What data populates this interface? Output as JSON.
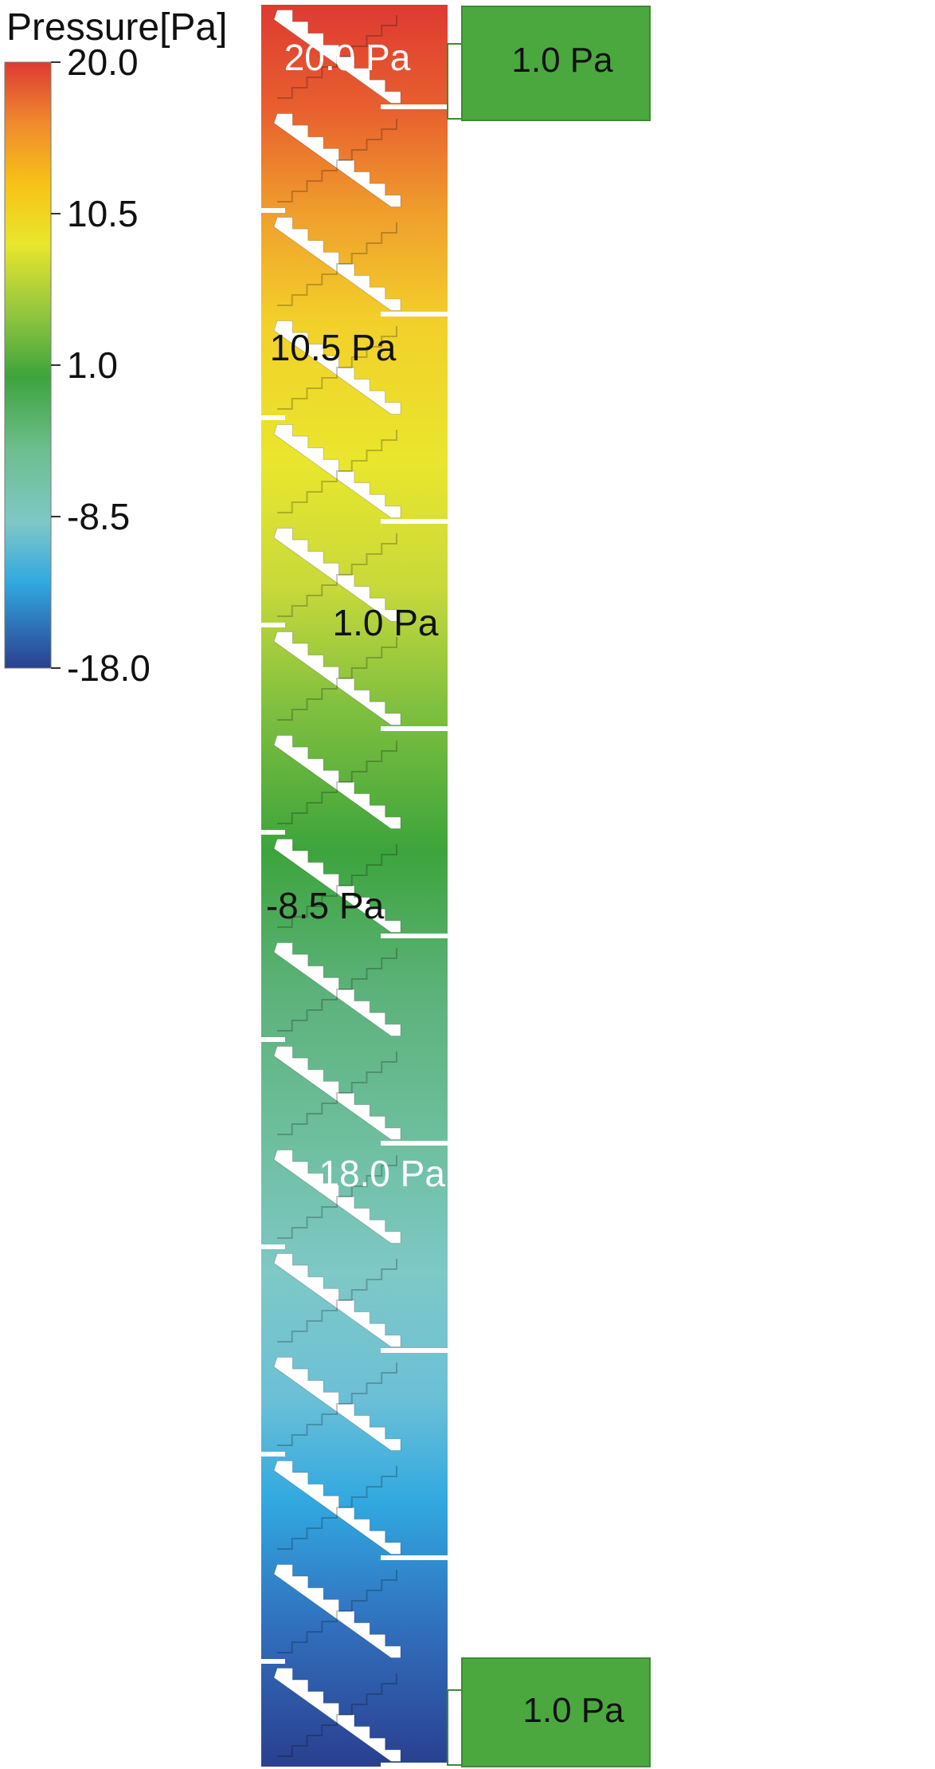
{
  "legend": {
    "title": "Pressure[Pa]",
    "ticks": [
      {
        "value": 20.0,
        "label": "20.0"
      },
      {
        "value": 10.5,
        "label": "10.5"
      },
      {
        "value": 1.0,
        "label": "1.0"
      },
      {
        "value": -8.5,
        "label": "-8.5"
      },
      {
        "value": -18.0,
        "label": "-18.0"
      }
    ],
    "range": [
      -18.0,
      20.0
    ],
    "colormap": [
      "#2a3f8f",
      "#31a8e0",
      "#7ec8c6",
      "#6dbe8f",
      "#3da43c",
      "#8fc43f",
      "#e9e62d",
      "#f7c217",
      "#ef8a2e",
      "#de3a32"
    ]
  },
  "column": {
    "stages": 17,
    "inlet_pressure": 20.0,
    "outlet_pressure": -18.0
  },
  "reservoirs": {
    "top": {
      "label": "1.0 Pa",
      "color": "#4ba83f"
    },
    "bottom": {
      "label": "1.0 Pa",
      "color": "#4ba83f"
    }
  },
  "annotations": [
    {
      "label": "20.0 Pa",
      "color": "#ffffff"
    },
    {
      "label": "10.5 Pa",
      "color": "#111111"
    },
    {
      "label": "1.0 Pa",
      "color": "#111111"
    },
    {
      "label": "-8.5 Pa",
      "color": "#111111"
    },
    {
      "label": "-18.0 Pa",
      "color": "#ffffff"
    }
  ]
}
